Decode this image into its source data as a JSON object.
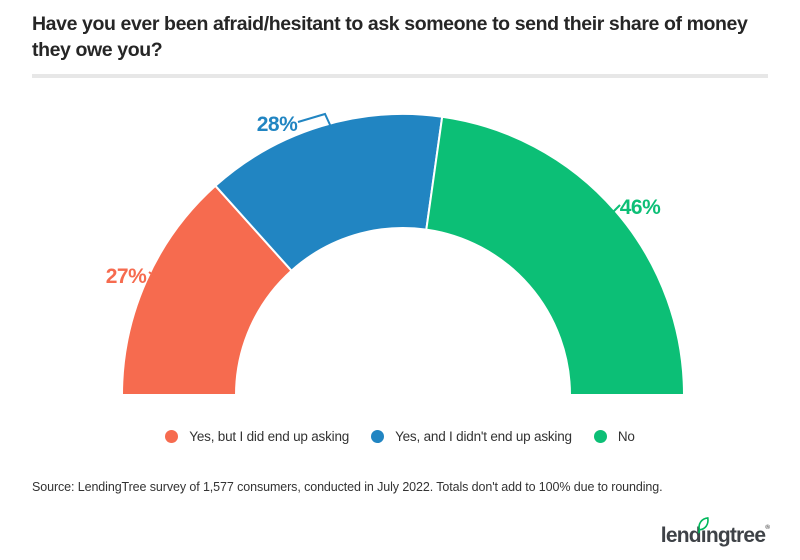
{
  "title": "Have you ever been afraid/hesitant to ask someone to send their share of money they owe you?",
  "chart_data": {
    "type": "pie",
    "variant": "half-donut",
    "arc_span_deg": 180,
    "inner_radius_ratio": 0.59,
    "legend_position": "bottom",
    "title": "Have you ever been afraid/hesitant to ask someone to send their share of money they owe you?",
    "categories": [
      "Yes, but I did end up asking",
      "Yes, and I didn't end up asking",
      "No"
    ],
    "values": [
      27,
      28,
      46
    ],
    "labels": [
      "27%",
      "28%",
      "46%"
    ],
    "colors": [
      "#F66B4F",
      "#2185C2",
      "#0CBF76"
    ]
  },
  "source": "Source: LendingTree survey of 1,577 consumers, conducted in July 2022. Totals don't add to 100% due to rounding.",
  "logo": {
    "text": "lendingtree",
    "part1": "lend",
    "part2": "ı",
    "part3": "ngtree",
    "reg": "®",
    "leaf_color": "#00B85C",
    "text_color": "#3E4247"
  }
}
